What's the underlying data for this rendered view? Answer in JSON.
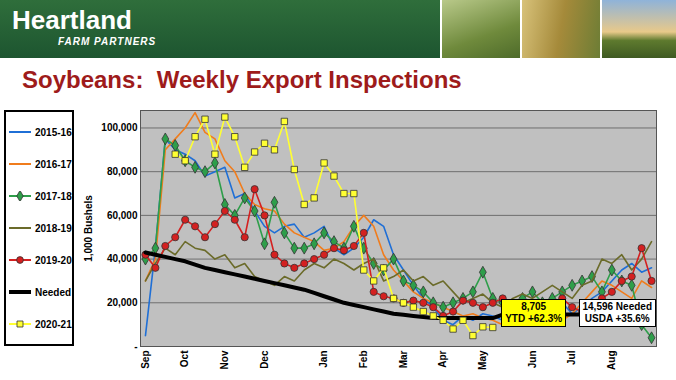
{
  "header": {
    "logo": "Heartland",
    "logo_subtitle": "FARM PARTNERS"
  },
  "chart_data": {
    "type": "line",
    "title": "Soybeans:  Weekly Export Inspections",
    "y_label": "1,000 Bushels",
    "categories": [
      "Sep",
      null,
      null,
      null,
      "Oct",
      null,
      null,
      null,
      "Nov",
      null,
      null,
      null,
      "Dec",
      null,
      null,
      null,
      null,
      null,
      "Jan",
      null,
      null,
      null,
      "Feb",
      null,
      null,
      null,
      "Mar",
      null,
      null,
      null,
      "Apr",
      null,
      null,
      null,
      "May",
      null,
      null,
      null,
      null,
      "Jun",
      null,
      null,
      null,
      "Jul",
      null,
      null,
      null,
      "Aug",
      null,
      null,
      null,
      null
    ],
    "series": [
      {
        "name": "2015-16",
        "color": "#1f6fd6",
        "line_style": "solid",
        "values": [
          5000,
          45000,
          95000,
          90000,
          88000,
          85000,
          78000,
          80000,
          82000,
          68000,
          70000,
          62000,
          55000,
          52000,
          55000,
          56000,
          50000,
          52000,
          55000,
          45000,
          42000,
          45000,
          50000,
          58000,
          55000,
          42000,
          35000,
          28000,
          22000,
          18000,
          12000,
          10000,
          14000,
          12000,
          15000,
          14000,
          12000,
          10000,
          15000,
          14000,
          16000,
          18000,
          20000,
          15000,
          18000,
          22000,
          25000,
          30000,
          35000,
          38000,
          34000,
          36000
        ]
      },
      {
        "name": "2016-17",
        "color": "#f07c1c",
        "line_style": "solid",
        "values": [
          30000,
          40000,
          90000,
          95000,
          100000,
          107000,
          98000,
          95000,
          85000,
          80000,
          70000,
          65000,
          63000,
          62000,
          56000,
          52000,
          50000,
          48000,
          44000,
          45000,
          48000,
          55000,
          60000,
          55000,
          42000,
          35000,
          30000,
          25000,
          22000,
          20000,
          18000,
          16000,
          14000,
          15000,
          13000,
          12000,
          10000,
          12000,
          14000,
          15000,
          18000,
          16000,
          12000,
          15000,
          20000,
          25000,
          30000,
          28000,
          25000,
          22000,
          30000,
          27000
        ]
      },
      {
        "name": "2017-18",
        "color": "#2e9e4a",
        "line_style": "solid",
        "marker": "diamond",
        "values": [
          40000,
          45000,
          95000,
          92000,
          85000,
          82000,
          80000,
          84000,
          65000,
          60000,
          68000,
          62000,
          47000,
          66000,
          52000,
          45000,
          45000,
          47000,
          52000,
          48000,
          45000,
          55000,
          45000,
          38000,
          35000,
          40000,
          30000,
          28000,
          25000,
          20000,
          18000,
          20000,
          22000,
          25000,
          34000,
          22000,
          20000,
          18000,
          22000,
          25000,
          20000,
          22000,
          25000,
          28000,
          30000,
          32000,
          25000,
          35000,
          30000,
          28000,
          10000,
          4000
        ]
      },
      {
        "name": "2018-19",
        "color": "#6b6b2a",
        "line_style": "solid",
        "values": [
          30000,
          38000,
          45000,
          42000,
          48000,
          45000,
          44000,
          40000,
          42000,
          36000,
          38000,
          32000,
          30000,
          28000,
          32000,
          30000,
          35000,
          38000,
          36000,
          40000,
          38000,
          35000,
          38000,
          40000,
          30000,
          32000,
          35000,
          30000,
          32000,
          28000,
          30000,
          25000,
          20000,
          22000,
          24000,
          20000,
          18000,
          22000,
          24000,
          22000,
          25000,
          28000,
          25000,
          22000,
          28000,
          30000,
          40000,
          38000,
          42000,
          35000,
          40000,
          48000
        ]
      },
      {
        "name": "2019-20",
        "color": "#d42020",
        "line_style": "solid",
        "marker": "circle",
        "values": [
          42000,
          36000,
          46000,
          50000,
          58000,
          55000,
          50000,
          56000,
          62000,
          58000,
          50000,
          72000,
          60000,
          42000,
          38000,
          36000,
          38000,
          40000,
          42000,
          45000,
          44000,
          46000,
          52000,
          25000,
          23000,
          22000,
          20000,
          21000,
          20000,
          18000,
          14000,
          16000,
          21000,
          20000,
          18000,
          20000,
          22000,
          20000,
          18000,
          17000,
          16000,
          18000,
          22000,
          18000,
          16000,
          20000,
          22000,
          25000,
          30000,
          32000,
          45000,
          30000
        ]
      },
      {
        "name": "Needed",
        "color": "#000000",
        "line_style": "bold",
        "values": [
          43000,
          42000,
          41000,
          40000,
          39000,
          37500,
          36000,
          35000,
          34000,
          33000,
          32000,
          31000,
          30000,
          29000,
          28000,
          27000,
          26000,
          24500,
          23000,
          21500,
          20000,
          19000,
          18000,
          17000,
          16000,
          15000,
          14500,
          14000,
          13500,
          13000,
          13000,
          13000,
          13000,
          13000,
          13000,
          13000,
          14596,
          14596,
          14596,
          14596,
          14596,
          14596,
          14596,
          14596,
          14596,
          14596,
          14596,
          14596,
          14596,
          14596,
          14596,
          14596
        ]
      },
      {
        "name": "2020-21",
        "color": "#ffff33",
        "line_style": "solid",
        "marker": "square",
        "values": [
          null,
          null,
          null,
          88000,
          85000,
          96000,
          104000,
          88000,
          105000,
          96000,
          82000,
          89000,
          93000,
          90000,
          103000,
          81000,
          65000,
          68000,
          84000,
          78000,
          70000,
          70000,
          35000,
          30000,
          36000,
          22000,
          20000,
          18000,
          16000,
          14000,
          12000,
          8000,
          12000,
          5000,
          9000,
          8705,
          null,
          null,
          null,
          null,
          null,
          null,
          null,
          null,
          null,
          null,
          null,
          null,
          null,
          null,
          null,
          null
        ]
      }
    ],
    "ylim": [
      0,
      108000
    ],
    "yticks": [
      {
        "value": 0,
        "label": "-"
      },
      {
        "value": 20000,
        "label": "20,000"
      },
      {
        "value": 40000,
        "label": "40,000"
      },
      {
        "value": 60000,
        "label": "60,000"
      },
      {
        "value": 80000,
        "label": "80,000"
      },
      {
        "value": 100000,
        "label": "100,000"
      }
    ],
    "grid": true,
    "legend": "left",
    "annotations": [
      {
        "text": [
          "8,705",
          "YTD +62.3%"
        ],
        "color": "#ffff00"
      },
      {
        "text": [
          "14,596 Needed",
          "USDA +35.6%"
        ],
        "color": "#ffffff"
      }
    ]
  }
}
